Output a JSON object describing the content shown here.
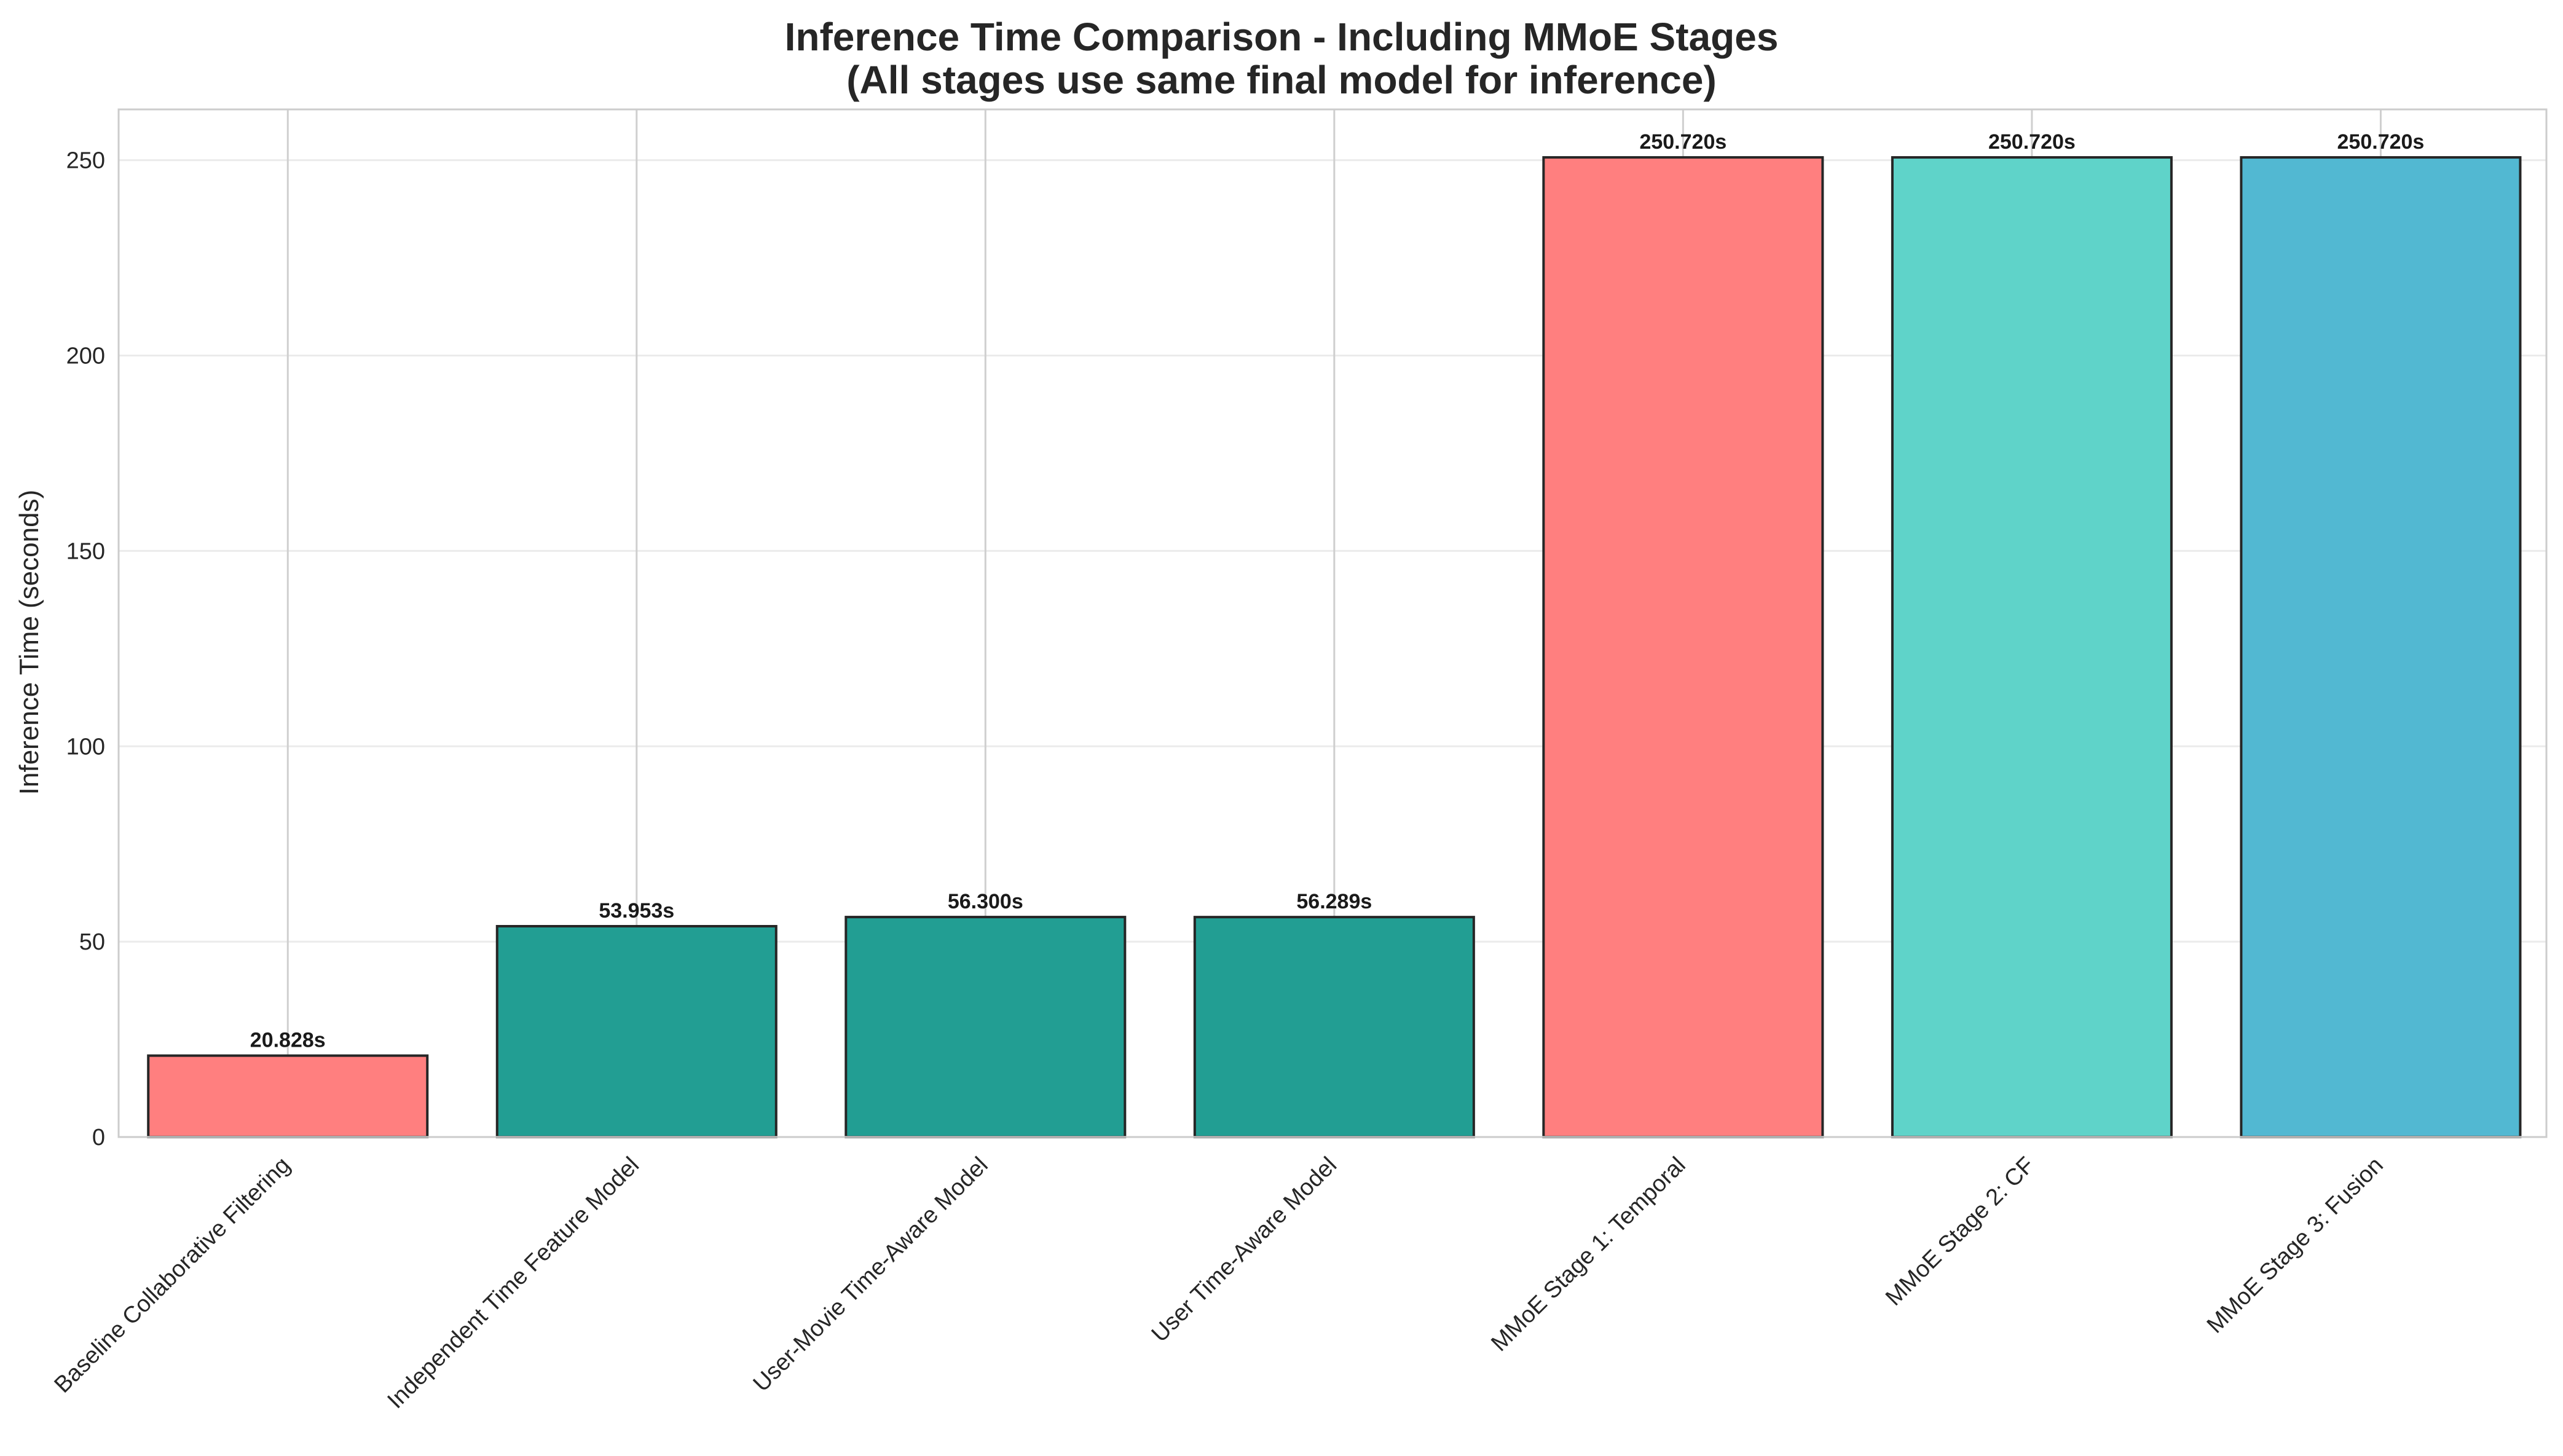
{
  "chart_data": {
    "type": "bar",
    "title": "Inference Time Comparison - Including MMoE Stages",
    "subtitle": "(All stages use same final model for inference)",
    "xlabel": "",
    "ylabel": "Inference Time (seconds)",
    "ylim": [
      0,
      263
    ],
    "yticks": [
      0,
      50,
      100,
      150,
      200,
      250
    ],
    "grid": true,
    "categories": [
      "Baseline Collaborative Filtering",
      "Independent Time Feature Model",
      "User-Movie Time-Aware Model",
      "User Time-Aware Model",
      "MMoE Stage 1: Temporal",
      "MMoE Stage 2: CF",
      "MMoE Stage 3: Fusion"
    ],
    "values": [
      20.828,
      53.953,
      56.3,
      56.289,
      250.72,
      250.72,
      250.72
    ],
    "value_labels": [
      "20.828s",
      "53.953s",
      "56.300s",
      "56.289s",
      "250.720s",
      "250.720s",
      "250.720s"
    ],
    "colors": [
      "#ff7f7f",
      "#229e93",
      "#229e93",
      "#229e93",
      "#ff7f7f",
      "#5fd3c9",
      "#52b8d2"
    ]
  }
}
